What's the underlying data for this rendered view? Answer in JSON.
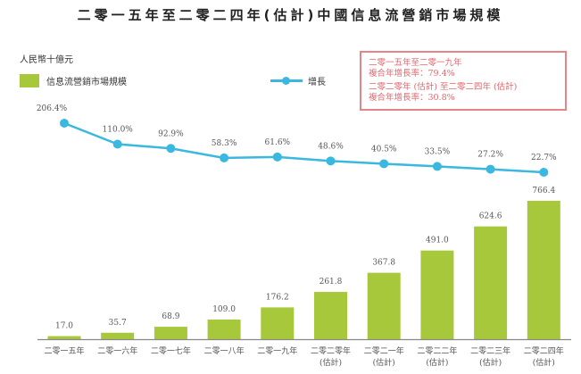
{
  "title": "二零一五年至二零二四年(估計)中國信息流營銷市場規模",
  "unit_label": "人民幣十億元",
  "legend": {
    "bar": "信息流營銷市場規模",
    "line": "增長"
  },
  "cagr_box": {
    "line1": "二零一五年至二零一九年",
    "line2": "複合年增長率：79.4%",
    "line3": "二零二零年 (估計) 至二零二四年 (估計)",
    "line4": "複合年增長率：30.8%"
  },
  "colors": {
    "bar": "#a8c83c",
    "line": "#3ab8e0",
    "cagr_border": "#e68589",
    "cagr_text": "#e0666c"
  },
  "chart_data": {
    "type": "bar",
    "title": "二零一五年至二零二四年(估計)中國信息流營銷市場規模",
    "ylabel": "人民幣十億元",
    "categories": [
      [
        "二零一五年",
        ""
      ],
      [
        "二零一六年",
        ""
      ],
      [
        "二零一七年",
        ""
      ],
      [
        "二零一八年",
        ""
      ],
      [
        "二零一九年",
        ""
      ],
      [
        "二零二零年",
        "(估計)"
      ],
      [
        "二零二一年",
        "(估計)"
      ],
      [
        "二零二二年",
        "(估計)"
      ],
      [
        "二零二三年",
        "(估計)"
      ],
      [
        "二零二四年",
        "(估計)"
      ]
    ],
    "series": [
      {
        "name": "信息流營銷市場規模",
        "type": "bar",
        "values": [
          17.0,
          35.7,
          68.9,
          109.0,
          176.2,
          261.8,
          367.8,
          491.0,
          624.6,
          766.4
        ],
        "labels": [
          "17.0",
          "35.7",
          "68.9",
          "109.0",
          "176.2",
          "261.8",
          "367.8",
          "491.0",
          "624.6",
          "766.4"
        ]
      },
      {
        "name": "增長",
        "type": "line",
        "values": [
          206.4,
          110.0,
          92.9,
          58.3,
          61.6,
          48.6,
          40.5,
          33.5,
          27.2,
          22.7
        ],
        "labels": [
          "206.4%",
          "110.0%",
          "92.9%",
          "58.3%",
          "61.6%",
          "48.6%",
          "40.5%",
          "33.5%",
          "27.2%",
          "22.7%"
        ]
      }
    ],
    "legend_position": "top-left",
    "grid": false
  }
}
